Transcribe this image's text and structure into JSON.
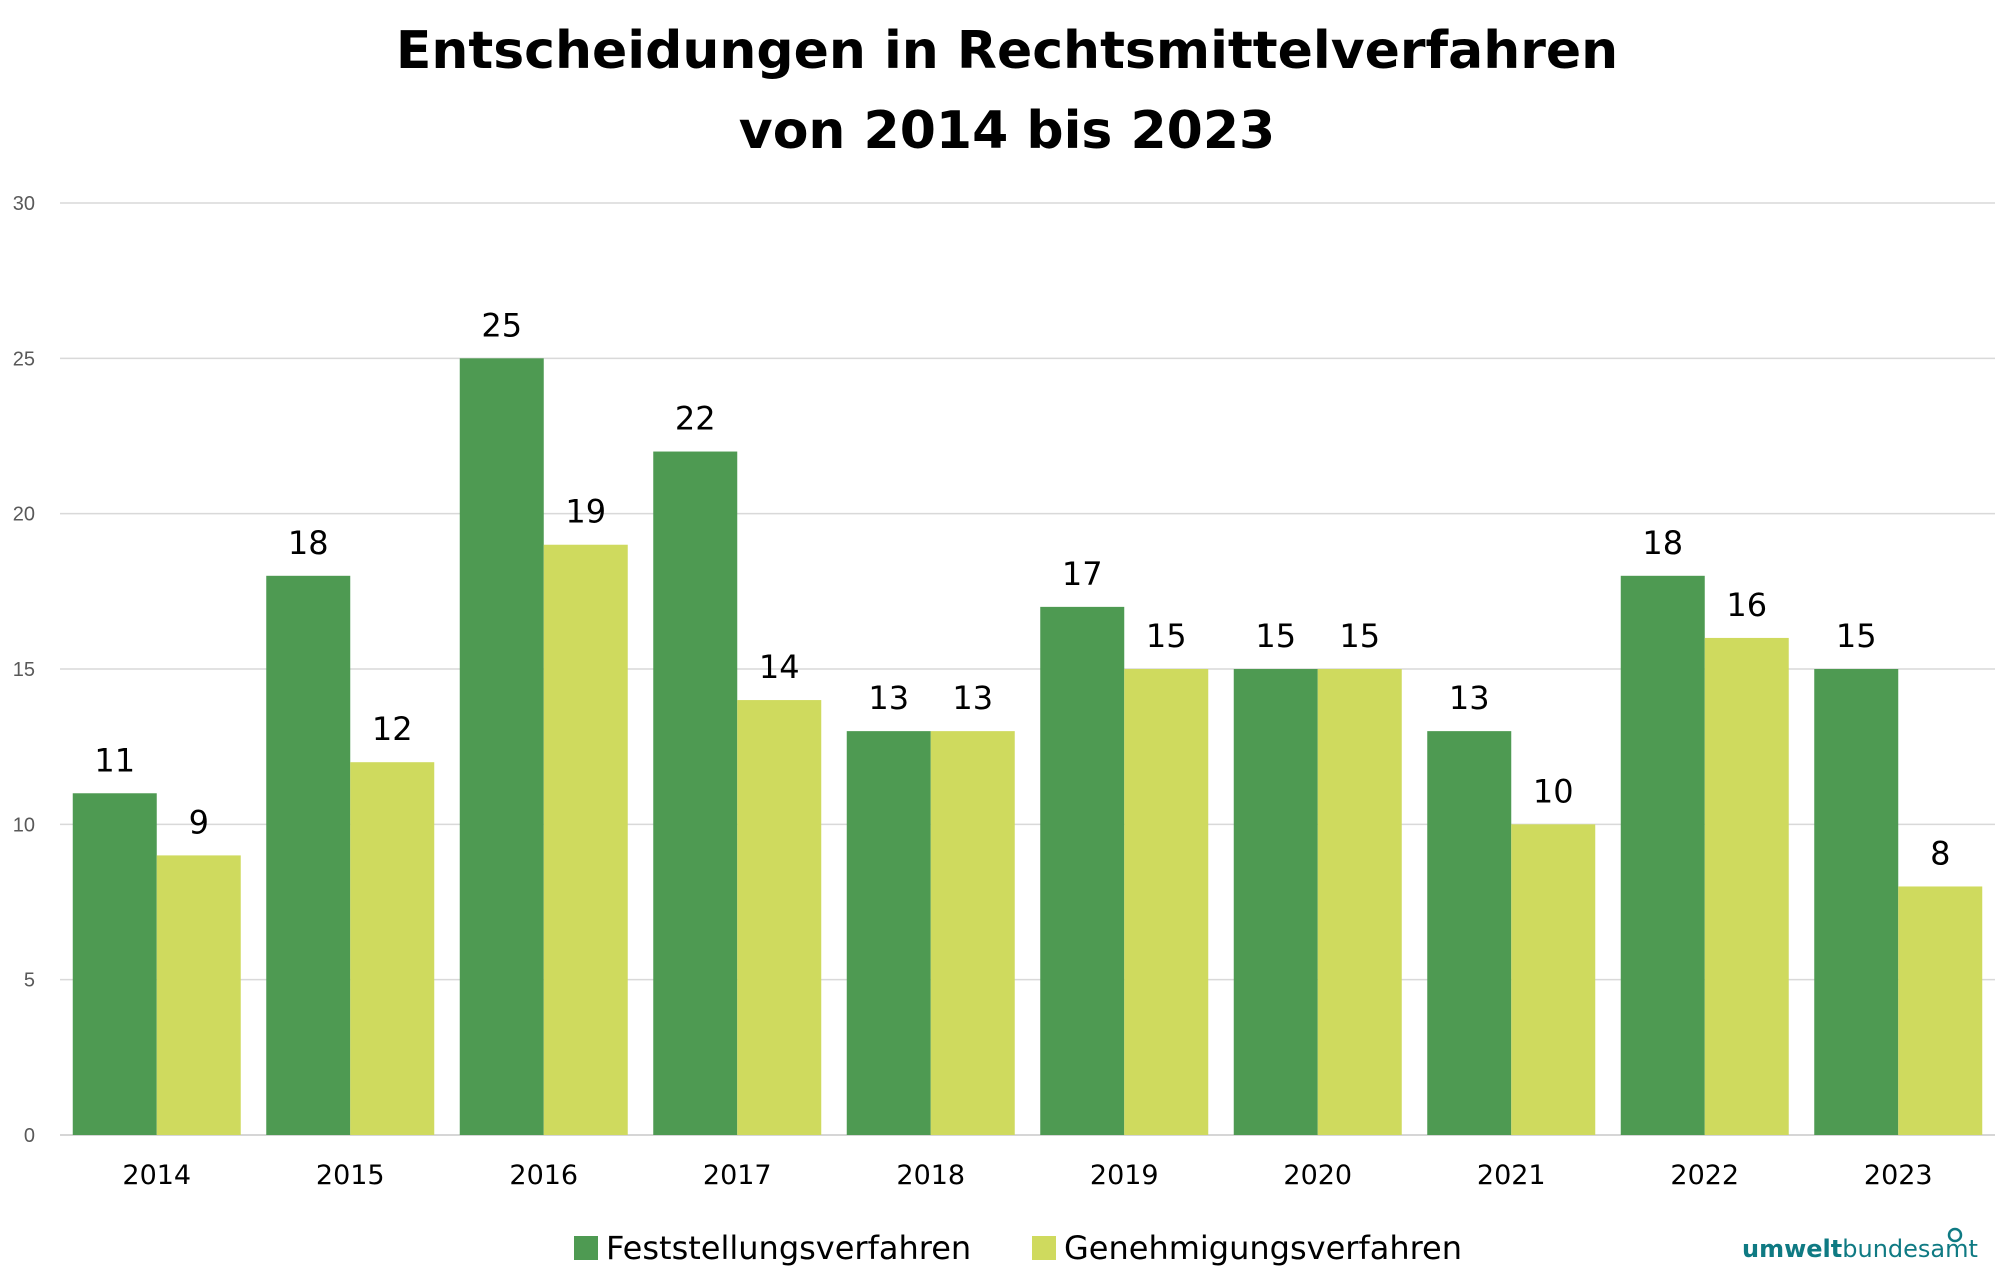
{
  "chart_data": {
    "type": "bar",
    "title_lines": [
      "Entscheidungen in Rechtsmittelverfahren",
      "von 2014 bis 2023"
    ],
    "categories": [
      "2014",
      "2015",
      "2016",
      "2017",
      "2018",
      "2019",
      "2020",
      "2021",
      "2022",
      "2023"
    ],
    "series": [
      {
        "name": "Feststellungsverfahren",
        "color": "#4e9a52",
        "values": [
          11,
          18,
          25,
          22,
          13,
          17,
          15,
          13,
          18,
          15
        ]
      },
      {
        "name": "Genehmigungsverfahren",
        "color": "#cfda5e",
        "values": [
          9,
          12,
          19,
          14,
          13,
          15,
          15,
          10,
          16,
          8
        ]
      }
    ],
    "ylim": [
      0,
      30
    ],
    "yticks": [
      "0",
      "5",
      "10",
      "15",
      "20",
      "25",
      "30"
    ],
    "grid": true,
    "legend_position": "bottom"
  },
  "brand": {
    "part1": "umwelt",
    "part2": "bundesamt"
  }
}
